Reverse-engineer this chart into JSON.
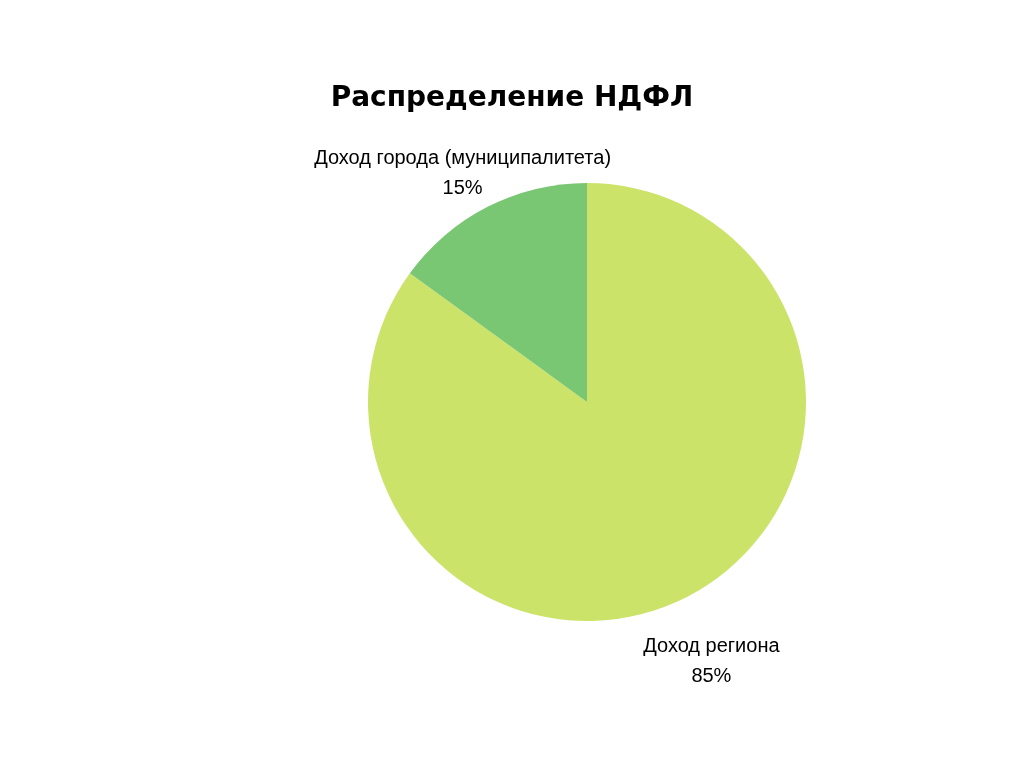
{
  "chart_data": {
    "type": "pie",
    "title": "Распределение НДФЛ",
    "categories": [
      "Доход региона",
      "Доход города (муниципалитета)"
    ],
    "values": [
      85,
      15
    ],
    "colors": [
      "#cce36a",
      "#79c673"
    ],
    "value_labels": [
      "85%",
      "15%"
    ]
  }
}
